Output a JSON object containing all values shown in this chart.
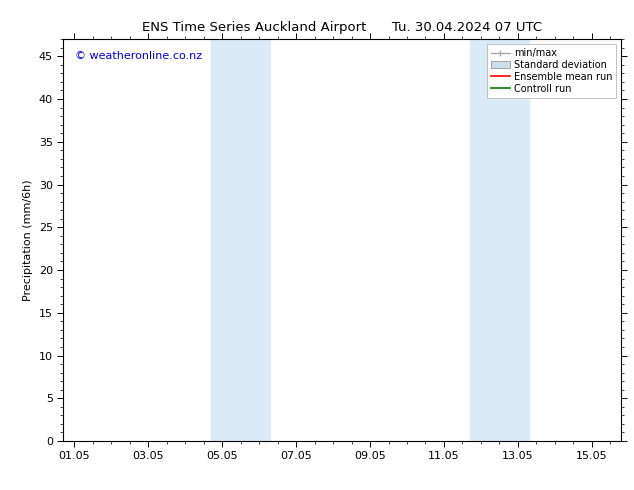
{
  "title_left": "ENS Time Series Auckland Airport",
  "title_right": "Tu. 30.04.2024 07 UTC",
  "ylabel": "Precipitation (mm/6h)",
  "xlabel": "",
  "ylim": [
    0,
    47
  ],
  "yticks": [
    0,
    5,
    10,
    15,
    20,
    25,
    30,
    35,
    40,
    45
  ],
  "xtick_labels": [
    "01.05",
    "03.05",
    "05.05",
    "07.05",
    "09.05",
    "11.05",
    "13.05",
    "15.05"
  ],
  "xtick_positions": [
    0,
    2,
    4,
    6,
    8,
    10,
    12,
    14
  ],
  "xlim": [
    -0.3,
    14.8
  ],
  "shaded_regions": [
    {
      "xmin": 3.7,
      "xmax": 5.3,
      "color": "#daeaf7"
    },
    {
      "xmin": 10.7,
      "xmax": 12.3,
      "color": "#daeaf7"
    }
  ],
  "watermark_text": "© weatheronline.co.nz",
  "watermark_color": "#0000cc",
  "background_color": "#ffffff",
  "plot_bg_color": "#ffffff",
  "legend_items": [
    {
      "label": "min/max",
      "color": "#aaaaaa",
      "type": "minmax"
    },
    {
      "label": "Standard deviation",
      "color": "#ccdded",
      "type": "box"
    },
    {
      "label": "Ensemble mean run",
      "color": "#ff0000",
      "type": "line"
    },
    {
      "label": "Controll run",
      "color": "#008000",
      "type": "line"
    }
  ],
  "tick_color": "#000000",
  "spine_color": "#000000",
  "title_fontsize": 9.5,
  "label_fontsize": 8,
  "tick_fontsize": 8,
  "watermark_fontsize": 8,
  "legend_fontsize": 7
}
